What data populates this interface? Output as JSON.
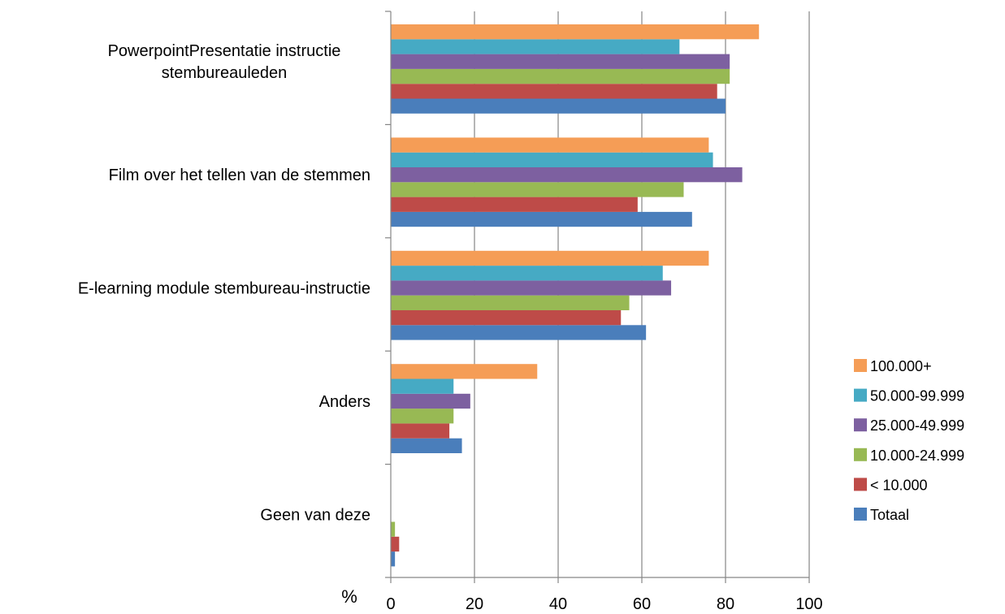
{
  "chart_data": {
    "type": "bar",
    "orientation": "horizontal",
    "categories": [
      [
        "PowerpointPresentatie instructie",
        "stembureauleden"
      ],
      [
        "Film over het tellen van de stemmen"
      ],
      [
        "E-learning module stembureau-instructie"
      ],
      [
        "Anders"
      ],
      [
        "Geen van deze"
      ]
    ],
    "series": [
      {
        "name": "Totaal",
        "color": "#4a7ebb",
        "values": [
          80,
          72,
          61,
          17,
          1
        ]
      },
      {
        "name": "< 10.000",
        "color": "#be4b48",
        "values": [
          78,
          59,
          55,
          14,
          2
        ]
      },
      {
        "name": "10.000-24.999",
        "color": "#98b954",
        "values": [
          81,
          70,
          57,
          15,
          1
        ]
      },
      {
        "name": "25.000-49.999",
        "color": "#7d60a0",
        "values": [
          81,
          84,
          67,
          19,
          0
        ]
      },
      {
        "name": "50.000-99.999",
        "color": "#46aac4",
        "values": [
          69,
          77,
          65,
          15,
          0
        ]
      },
      {
        "name": "100.000+",
        "color": "#f59d56",
        "values": [
          88,
          76,
          76,
          35,
          0
        ]
      }
    ],
    "legend_order": [
      "100.000+",
      "50.000-99.999",
      "25.000-49.999",
      "10.000-24.999",
      "< 10.000",
      "Totaal"
    ],
    "xlim": [
      0,
      100
    ],
    "xticks": [
      0,
      20,
      40,
      60,
      80,
      100
    ],
    "xlabel": "%",
    "grid": "vertical",
    "legend_position": "right"
  }
}
